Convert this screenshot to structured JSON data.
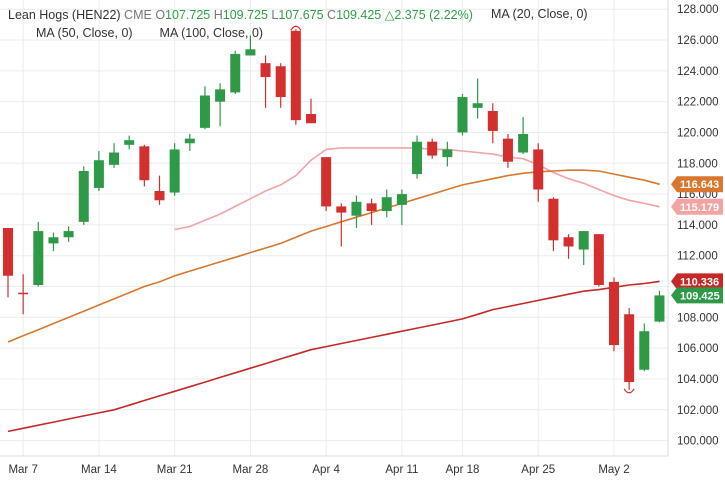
{
  "legend": {
    "symbol": "Lean Hogs (HEN22)",
    "exchange": "CME",
    "open_label": "O",
    "open": "107.725",
    "high_label": "H",
    "high": "109.725",
    "low_label": "L",
    "low": "107.675",
    "close_label": "C",
    "close": "109.425",
    "change": "△2.375 (2.22%)",
    "ma20": "MA (20, Close, 0)",
    "ma50": "MA (50, Close, 0)",
    "ma100": "MA (100, Close, 0)"
  },
  "colors": {
    "up": "#2e9a48",
    "down": "#d32f2f",
    "ma20": "#f4a3a3",
    "ma50": "#d9772f",
    "ma100": "#c62828",
    "grid": "#ececec",
    "axis_text": "#333333"
  },
  "chart_data": {
    "type": "candlestick",
    "y_ticks": [
      "128.000",
      "126.000",
      "124.000",
      "122.000",
      "120.000",
      "118.000",
      "116.000",
      "114.000",
      "112.000",
      "110.000",
      "108.000",
      "106.000",
      "104.000",
      "102.000",
      "100.000"
    ],
    "ylim": [
      99.0,
      128.6
    ],
    "x_labels": [
      {
        "label": "Mar 7",
        "index": 1
      },
      {
        "label": "Mar 14",
        "index": 6
      },
      {
        "label": "Mar 21",
        "index": 11
      },
      {
        "label": "Mar 28",
        "index": 16
      },
      {
        "label": "Apr 4",
        "index": 21
      },
      {
        "label": "Apr 11",
        "index": 26
      },
      {
        "label": "Apr 18",
        "index": 30
      },
      {
        "label": "Apr 25",
        "index": 35
      },
      {
        "label": "May 2",
        "index": 40
      }
    ],
    "candles": [
      {
        "o": 113.8,
        "h": 113.8,
        "l": 109.3,
        "c": 110.7
      },
      {
        "o": 109.6,
        "h": 110.8,
        "l": 108.2,
        "c": 109.5
      },
      {
        "o": 110.1,
        "h": 114.2,
        "l": 110.0,
        "c": 113.6
      },
      {
        "o": 112.8,
        "h": 113.5,
        "l": 112.3,
        "c": 113.2
      },
      {
        "o": 113.2,
        "h": 113.9,
        "l": 112.9,
        "c": 113.6
      },
      {
        "o": 114.2,
        "h": 117.8,
        "l": 114.0,
        "c": 117.5
      },
      {
        "o": 116.4,
        "h": 118.8,
        "l": 116.2,
        "c": 118.2
      },
      {
        "o": 117.9,
        "h": 119.3,
        "l": 117.7,
        "c": 118.7
      },
      {
        "o": 119.2,
        "h": 119.8,
        "l": 118.9,
        "c": 119.5
      },
      {
        "o": 119.1,
        "h": 119.2,
        "l": 116.5,
        "c": 116.9
      },
      {
        "o": 116.2,
        "h": 117.2,
        "l": 115.3,
        "c": 115.6
      },
      {
        "o": 116.1,
        "h": 119.3,
        "l": 115.9,
        "c": 118.9
      },
      {
        "o": 119.3,
        "h": 119.9,
        "l": 118.8,
        "c": 119.6
      },
      {
        "o": 120.3,
        "h": 123.0,
        "l": 120.2,
        "c": 122.4
      },
      {
        "o": 122.0,
        "h": 123.2,
        "l": 120.4,
        "c": 122.8
      },
      {
        "o": 122.6,
        "h": 125.3,
        "l": 122.5,
        "c": 125.1
      },
      {
        "o": 125.0,
        "h": 126.3,
        "l": 125.0,
        "c": 125.4
      },
      {
        "o": 124.5,
        "h": 125.0,
        "l": 121.6,
        "c": 123.6
      },
      {
        "o": 124.3,
        "h": 124.5,
        "l": 121.6,
        "c": 122.3
      },
      {
        "o": 126.6,
        "h": 126.7,
        "l": 120.5,
        "c": 120.8
      },
      {
        "o": 121.2,
        "h": 122.2,
        "l": 120.7,
        "c": 120.6
      },
      {
        "o": 118.4,
        "h": 118.4,
        "l": 114.9,
        "c": 115.2
      },
      {
        "o": 115.2,
        "h": 115.4,
        "l": 112.6,
        "c": 114.8
      },
      {
        "o": 114.6,
        "h": 115.9,
        "l": 113.8,
        "c": 115.5
      },
      {
        "o": 115.4,
        "h": 115.7,
        "l": 114.0,
        "c": 114.9
      },
      {
        "o": 114.9,
        "h": 116.3,
        "l": 114.5,
        "c": 115.8
      },
      {
        "o": 115.3,
        "h": 116.3,
        "l": 114.0,
        "c": 116.0
      },
      {
        "o": 117.3,
        "h": 119.8,
        "l": 117.0,
        "c": 119.4
      },
      {
        "o": 119.4,
        "h": 119.6,
        "l": 118.3,
        "c": 118.5
      },
      {
        "o": 118.4,
        "h": 119.4,
        "l": 117.8,
        "c": 118.9
      },
      {
        "o": 120.0,
        "h": 122.5,
        "l": 119.8,
        "c": 122.3
      },
      {
        "o": 121.6,
        "h": 123.5,
        "l": 120.9,
        "c": 121.9
      },
      {
        "o": 121.4,
        "h": 121.9,
        "l": 119.3,
        "c": 120.1
      },
      {
        "o": 119.6,
        "h": 119.9,
        "l": 117.7,
        "c": 118.1
      },
      {
        "o": 118.7,
        "h": 121.0,
        "l": 118.6,
        "c": 119.9
      },
      {
        "o": 118.9,
        "h": 119.3,
        "l": 115.5,
        "c": 116.3
      },
      {
        "o": 115.7,
        "h": 115.8,
        "l": 112.3,
        "c": 113.0
      },
      {
        "o": 113.2,
        "h": 113.4,
        "l": 111.8,
        "c": 112.6
      },
      {
        "o": 112.4,
        "h": 113.5,
        "l": 111.4,
        "c": 113.6
      },
      {
        "o": 113.4,
        "h": 113.4,
        "l": 110.0,
        "c": 110.1
      },
      {
        "o": 110.3,
        "h": 110.6,
        "l": 105.8,
        "c": 106.2
      },
      {
        "o": 108.2,
        "h": 108.6,
        "l": 103.3,
        "c": 103.8
      },
      {
        "o": 104.6,
        "h": 107.6,
        "l": 104.5,
        "c": 107.1
      },
      {
        "o": 107.725,
        "h": 109.725,
        "l": 107.675,
        "c": 109.425
      }
    ],
    "series": [
      {
        "name": "MA (20, Close, 0)",
        "key": "ma20",
        "values": [
          null,
          null,
          null,
          null,
          null,
          null,
          null,
          null,
          null,
          null,
          null,
          113.7,
          113.9,
          114.3,
          114.7,
          115.2,
          115.7,
          116.2,
          116.6,
          117.2,
          118.2,
          118.9,
          119.0,
          119.0,
          119.0,
          119.0,
          119.0,
          119.0,
          118.9,
          118.9,
          118.8,
          118.7,
          118.6,
          118.4,
          118.3,
          117.9,
          117.4,
          117.0,
          116.7,
          116.3,
          115.9,
          115.6,
          115.4,
          115.18
        ]
      },
      {
        "name": "MA (50, Close, 0)",
        "key": "ma50",
        "values": [
          106.4,
          106.8,
          107.2,
          107.6,
          108.0,
          108.4,
          108.8,
          109.2,
          109.6,
          110.0,
          110.3,
          110.7,
          111.0,
          111.3,
          111.6,
          111.9,
          112.2,
          112.5,
          112.8,
          113.2,
          113.6,
          113.9,
          114.2,
          114.5,
          114.8,
          115.1,
          115.4,
          115.7,
          116.0,
          116.3,
          116.6,
          116.8,
          117.0,
          117.2,
          117.35,
          117.45,
          117.5,
          117.55,
          117.55,
          117.5,
          117.3,
          117.1,
          116.9,
          116.64
        ]
      },
      {
        "name": "MA (100, Close, 0)",
        "key": "ma100",
        "values": [
          100.6,
          100.8,
          101.0,
          101.2,
          101.4,
          101.6,
          101.8,
          102.0,
          102.3,
          102.6,
          102.9,
          103.2,
          103.5,
          103.8,
          104.1,
          104.4,
          104.7,
          105.0,
          105.3,
          105.6,
          105.9,
          106.1,
          106.3,
          106.5,
          106.7,
          106.9,
          107.1,
          107.3,
          107.5,
          107.7,
          107.9,
          108.2,
          108.5,
          108.7,
          108.9,
          109.1,
          109.3,
          109.5,
          109.7,
          109.8,
          109.95,
          110.1,
          110.2,
          110.336
        ]
      }
    ],
    "price_tags": [
      {
        "value": 116.643,
        "label": "116.643",
        "series": "ma50"
      },
      {
        "value": 115.179,
        "label": "115.179",
        "series": "ma20"
      },
      {
        "value": 110.336,
        "label": "110.336",
        "series": "ma100"
      },
      {
        "value": 109.425,
        "label": "109.425",
        "series": "up"
      }
    ],
    "annotations": [
      {
        "type": "high-marker",
        "index": 19
      },
      {
        "type": "low-marker",
        "index": 41
      }
    ],
    "grid": true
  }
}
